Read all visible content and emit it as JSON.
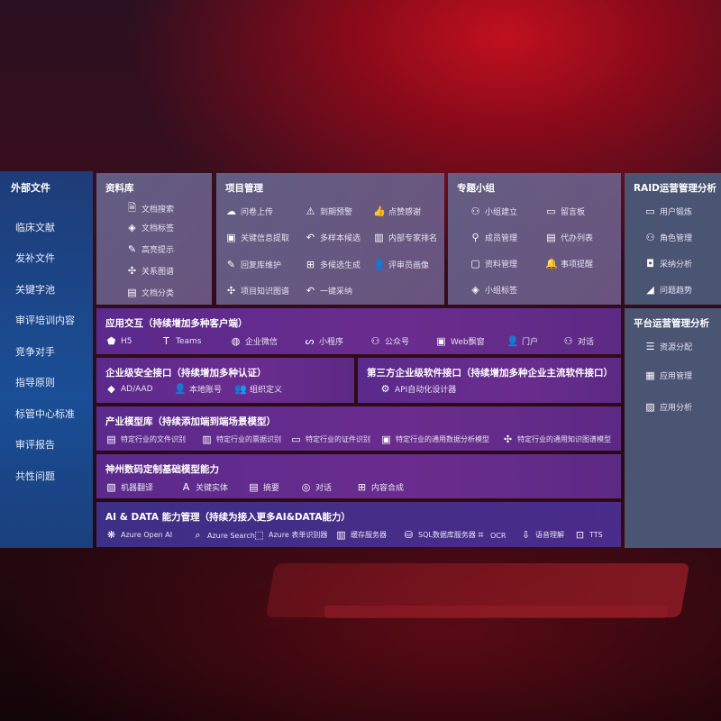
{
  "sidebar": {
    "title": "外部文件",
    "items": [
      "临床文献",
      "发补文件",
      "关键字池",
      "审评培训内容",
      "竞争对手",
      "指导原则",
      "标管中心标准",
      "审评报告",
      "共性问题"
    ]
  },
  "library": {
    "title": "资料库",
    "items": [
      {
        "label": "文档搜索",
        "icon": "document-search-icon"
      },
      {
        "label": "文档标签",
        "icon": "tag-icon"
      },
      {
        "label": "高亮提示",
        "icon": "pen-icon"
      },
      {
        "label": "关系图谱",
        "icon": "graph-icon"
      },
      {
        "label": "文档分类",
        "icon": "documents-icon"
      }
    ]
  },
  "project": {
    "title": "项目管理",
    "items": [
      {
        "label": "问卷上传",
        "icon": "cloud-upload-icon"
      },
      {
        "label": "到期预警",
        "icon": "alarm-icon"
      },
      {
        "label": "点赞感谢",
        "icon": "thumbs-up-icon"
      },
      {
        "label": "关键信息提取",
        "icon": "window-icon"
      },
      {
        "label": "多样本候选",
        "icon": "reply-icon"
      },
      {
        "label": "内部专家排名",
        "icon": "ranking-icon"
      },
      {
        "label": "回复库维护",
        "icon": "edit-icon"
      },
      {
        "label": "多候选生成",
        "icon": "puzzle-icon"
      },
      {
        "label": "评审员画像",
        "icon": "user-icon"
      },
      {
        "label": "项目知识图谱",
        "icon": "graph-icon"
      },
      {
        "label": "一键采纳",
        "icon": "reply-icon"
      }
    ]
  },
  "group": {
    "title": "专题小组",
    "items": [
      {
        "label": "小组建立",
        "icon": "users-icon"
      },
      {
        "label": "留言板",
        "icon": "bbs-icon"
      },
      {
        "label": "成员管理",
        "icon": "user-add-icon"
      },
      {
        "label": "代办列表",
        "icon": "clipboard-icon"
      },
      {
        "label": "资料管理",
        "icon": "folder-icon"
      },
      {
        "label": "事项提醒",
        "icon": "bell-icon"
      },
      {
        "label": "小组标签",
        "icon": "tag-icon"
      }
    ]
  },
  "raid": {
    "title": "RAID运营管理分析",
    "items": [
      {
        "label": "用户锻炼",
        "icon": "id-card-icon"
      },
      {
        "label": "角色管理",
        "icon": "users-icon"
      },
      {
        "label": "采纳分析",
        "icon": "qa-icon"
      },
      {
        "label": "问题趋势",
        "icon": "trend-icon"
      }
    ]
  },
  "platform": {
    "title": "平台运营管理分析",
    "items": [
      {
        "label": "资源分配",
        "icon": "checklist-icon"
      },
      {
        "label": "应用管理",
        "icon": "apps-icon"
      },
      {
        "label": "应用分析",
        "icon": "chart-icon"
      }
    ]
  },
  "interaction": {
    "title": "应用交互（持续增加多种客户端）",
    "items": [
      {
        "label": "H5",
        "icon": "html5-icon"
      },
      {
        "label": "Teams",
        "icon": "teams-icon"
      },
      {
        "label": "企业微信",
        "icon": "wechat-icon"
      },
      {
        "label": "小程序",
        "icon": "miniprogram-icon"
      },
      {
        "label": "公众号",
        "icon": "users-icon"
      },
      {
        "label": "Web飘窗",
        "icon": "window-icon"
      },
      {
        "label": "门户",
        "icon": "portal-icon"
      },
      {
        "label": "对话",
        "icon": "chat-users-icon"
      }
    ]
  },
  "security": {
    "title": "企业级安全接口（持续增加多种认证）",
    "items": [
      {
        "label": "AD/AAD",
        "icon": "diamond-icon"
      },
      {
        "label": "本地账号",
        "icon": "user-lock-icon"
      },
      {
        "label": "组织定义",
        "icon": "org-icon"
      }
    ]
  },
  "thirdparty": {
    "title": "第三方企业级软件接口（持续增加多种企业主流软件接口）",
    "items": [
      {
        "label": "API自动化设计器",
        "icon": "gear-icon"
      }
    ]
  },
  "industry": {
    "title": "产业模型库（持续添加端到端场景模型）",
    "items": [
      {
        "label": "特定行业的文件识别",
        "icon": "document-icon"
      },
      {
        "label": "特定行业的票据识别",
        "icon": "receipt-icon"
      },
      {
        "label": "特定行业的证件识别",
        "icon": "id-card-icon"
      },
      {
        "label": "特定行业的通用数据分析模型",
        "icon": "image-icon"
      },
      {
        "label": "特定行业的通用知识图谱模型",
        "icon": "graph-icon"
      }
    ]
  },
  "base": {
    "title": "神州数码定制基础模型能力",
    "items": [
      {
        "label": "机器翻译",
        "icon": "translate-icon"
      },
      {
        "label": "关键实体",
        "icon": "entity-icon"
      },
      {
        "label": "摘要",
        "icon": "document-icon"
      },
      {
        "label": "对话",
        "icon": "chat-icon"
      },
      {
        "label": "内容合成",
        "icon": "puzzle-icon"
      }
    ]
  },
  "aidata": {
    "title": "AI & DATA 能力管理（持续为接入更多AI&DATA能力）",
    "items": [
      {
        "label": "Azure Open AI",
        "icon": "openai-icon"
      },
      {
        "label": "Azure Search",
        "icon": "search-doc-icon"
      },
      {
        "label": "Azure 表单识别器",
        "icon": "form-icon"
      },
      {
        "label": "缓存服务器",
        "icon": "cache-icon"
      },
      {
        "label": "SQL数据库服务器",
        "icon": "database-icon"
      },
      {
        "label": "OCR",
        "icon": "ocr-icon"
      },
      {
        "label": "语音理解",
        "icon": "speech-icon"
      },
      {
        "label": "TTS",
        "icon": "tts-icon"
      }
    ]
  }
}
